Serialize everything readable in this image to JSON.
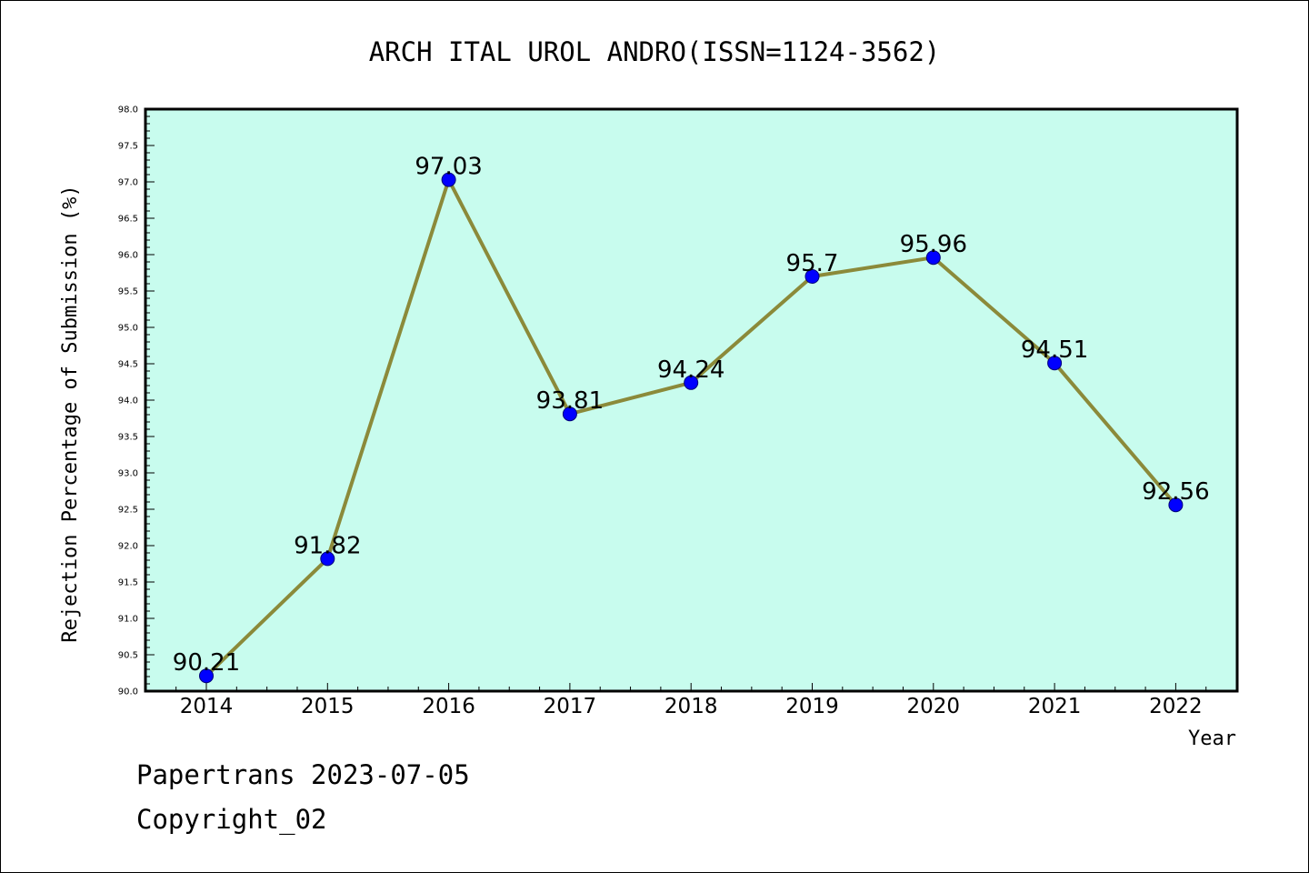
{
  "chart_data": {
    "type": "line",
    "title": "ARCH ITAL UROL ANDRO(ISSN=1124-3562)",
    "xlabel": "Year",
    "ylabel": "Rejection Percentage of Submission (%)",
    "categories": [
      "2014",
      "2015",
      "2016",
      "2017",
      "2018",
      "2019",
      "2020",
      "2021",
      "2022"
    ],
    "values": [
      90.21,
      91.82,
      97.03,
      93.81,
      94.24,
      95.7,
      95.96,
      94.51,
      92.56
    ],
    "data_labels": [
      "90.21",
      "91.82",
      "97.03",
      "93.81",
      "94.24",
      "95.7",
      "95.96",
      "94.51",
      "92.56"
    ],
    "ylim": [
      90.0,
      98.0
    ],
    "yticks": [
      "90.0",
      "90.5",
      "91.0",
      "91.5",
      "92.0",
      "92.5",
      "93.0",
      "93.5",
      "94.0",
      "94.5",
      "95.0",
      "95.5",
      "96.0",
      "96.5",
      "97.0",
      "97.5",
      "98.0"
    ],
    "grid": false,
    "colors": {
      "plot_background": "#c8fcee",
      "line": "#8b8a3a",
      "marker": "#0000ff"
    }
  },
  "footer": {
    "date_line": "Papertrans 2023-07-05",
    "copyright_line": "Copyright_02"
  }
}
